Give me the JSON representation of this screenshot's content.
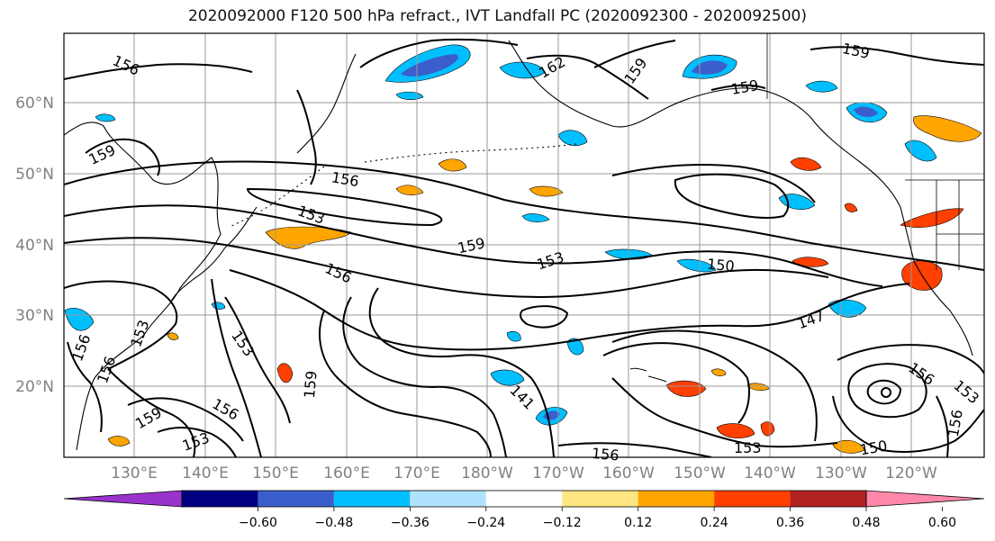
{
  "title": "2020092000 F120 500 hPa refract., IVT Landfall PC (2020092300 - 2020092500)",
  "latitude_labels": [
    "60°N",
    "50°N",
    "40°N",
    "30°N",
    "20°N"
  ],
  "longitude_labels": [
    "130°E",
    "140°E",
    "150°E",
    "160°E",
    "170°E",
    "180°W",
    "170°W",
    "160°W",
    "150°W",
    "140°W",
    "130°W",
    "120°W"
  ],
  "contour_labels": [
    "156",
    "162",
    "159",
    "159",
    "159",
    "159",
    "156",
    "153",
    "159",
    "153",
    "156",
    "150",
    "147",
    "153",
    "159",
    "156",
    "141",
    "159",
    "156",
    "153",
    "156",
    "153",
    "153",
    "150",
    "156",
    "153",
    "156",
    "156"
  ],
  "colorbar": {
    "ticks": [
      "−0.60",
      "−0.48",
      "−0.36",
      "−0.24",
      "−0.12",
      "0.12",
      "0.24",
      "0.36",
      "0.48",
      "0.60"
    ],
    "colors": [
      "#9933cc",
      "#000080",
      "#3a5fcd",
      "#00bfff",
      "#b0e2ff",
      "#ffffff",
      "#ffe680",
      "#ffa500",
      "#ff4000",
      "#b22222",
      "#ff88aa"
    ]
  },
  "colors": {
    "grid": "#999999",
    "contour": "#000000",
    "coast": "#000000"
  }
}
